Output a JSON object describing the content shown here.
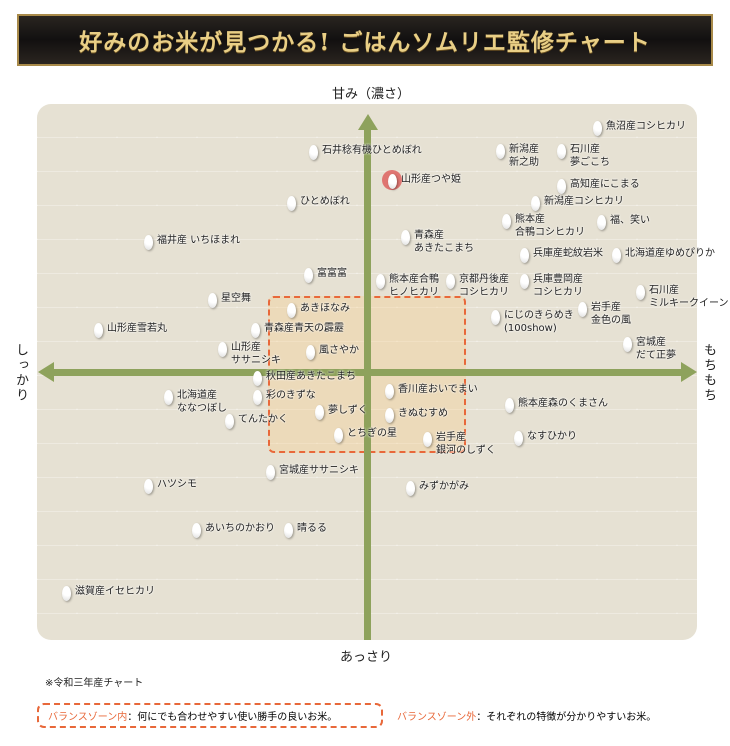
{
  "title": "好みのお米が見つかる! ごはんソムリエ監修チャート",
  "axes": {
    "top": "甘み（濃さ）",
    "bottom": "あっさり",
    "left": "しっかり",
    "right": "もちもち"
  },
  "note": "※令和三年産チャート",
  "legend": {
    "inside_label": "バランスゾーン内",
    "inside_text": "：何にでも合わせやすい使い勝手の良いお米。",
    "outside_label": "バランスゾーン外",
    "outside_text": "：それぞれの特徴が分かりやすいお米。"
  },
  "colors": {
    "axis": "#8ea25c",
    "zone": "#e8683a",
    "highlight": "#dc5050",
    "title": "#e9cf86"
  },
  "highlighted": "山形産つや姫",
  "items": [
    "魚沼産コシヒカリ",
    "石井稔有機ひとめぼれ",
    "新潟産\n新之助",
    "石川産\n夢ごこち",
    "山形産つや姫",
    "高知産にこまる",
    "ひとめぼれ",
    "新潟産コシヒカリ",
    "熊本産\n合鴨コシヒカリ",
    "福、笑い",
    "青森産\nあきたこまち",
    "福井産 いちほまれ",
    "兵庫産蛇紋岩米",
    "北海道産ゆめぴりか",
    "富富富",
    "熊本産合鴨\nヒノヒカリ",
    "京都丹後産\nコシヒカリ",
    "兵庫豊岡産\nコシヒカリ",
    "石川産\nミルキークイーン",
    "星空舞",
    "あきほなみ",
    "にじのきらめき\n(100show)",
    "岩手産\n金色の風",
    "山形産雪若丸",
    "青森産青天の霹靂",
    "宮城産\nだて正夢",
    "山形産\nササニシキ",
    "風さやか",
    "秋田産あきたこまち",
    "北海道産\nななつぼし",
    "彩のきずな",
    "香川産おいでまい",
    "熊本産森のくまさん",
    "夢しずく",
    "きぬむすめ",
    "てんたかく",
    "とちぎの星",
    "岩手産\n銀河のしずく",
    "なすひかり",
    "宮城産ササニシキ",
    "ハツシモ",
    "みずかがみ",
    "あいちのかおり",
    "晴るる",
    "滋賀産イセヒカリ"
  ]
}
